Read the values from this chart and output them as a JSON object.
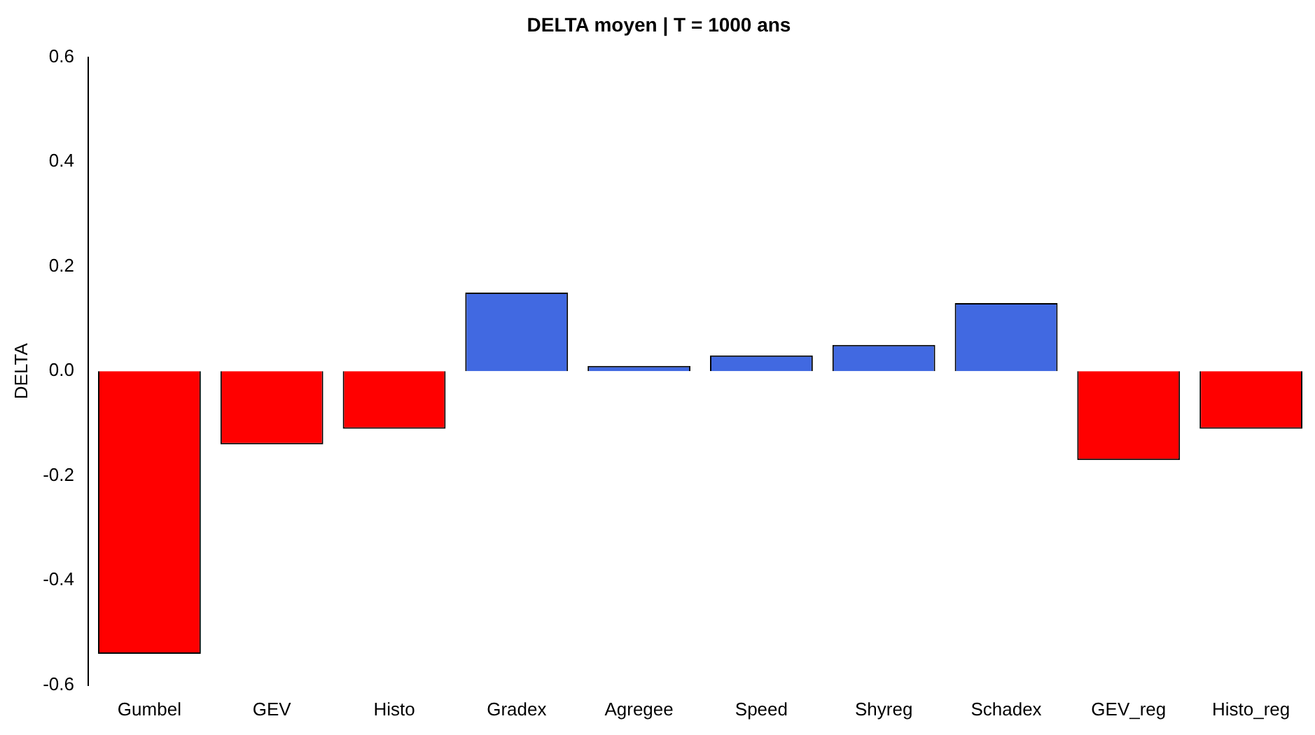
{
  "chart_data": {
    "type": "bar",
    "title": "DELTA moyen | T = 1000 ans",
    "ylabel": "DELTA",
    "categories": [
      "Gumbel",
      "GEV",
      "Histo",
      "Gradex",
      "Agregee",
      "Speed",
      "Shyreg",
      "Schadex",
      "GEV_reg",
      "Histo_reg"
    ],
    "values": [
      -0.54,
      -0.14,
      -0.11,
      0.15,
      0.01,
      0.03,
      0.05,
      0.13,
      -0.17,
      -0.11
    ],
    "colors": [
      "#ff0000",
      "#ff0000",
      "#ff0000",
      "#4169e1",
      "#4169e1",
      "#4169e1",
      "#4169e1",
      "#4169e1",
      "#ff0000",
      "#ff0000"
    ],
    "ylim": [
      -0.6,
      0.6
    ],
    "yticks": [
      -0.6,
      -0.4,
      -0.2,
      {
        "value": 0,
        "label": "0.0"
      },
      0.2,
      0.4,
      0.6
    ],
    "grid": false
  }
}
